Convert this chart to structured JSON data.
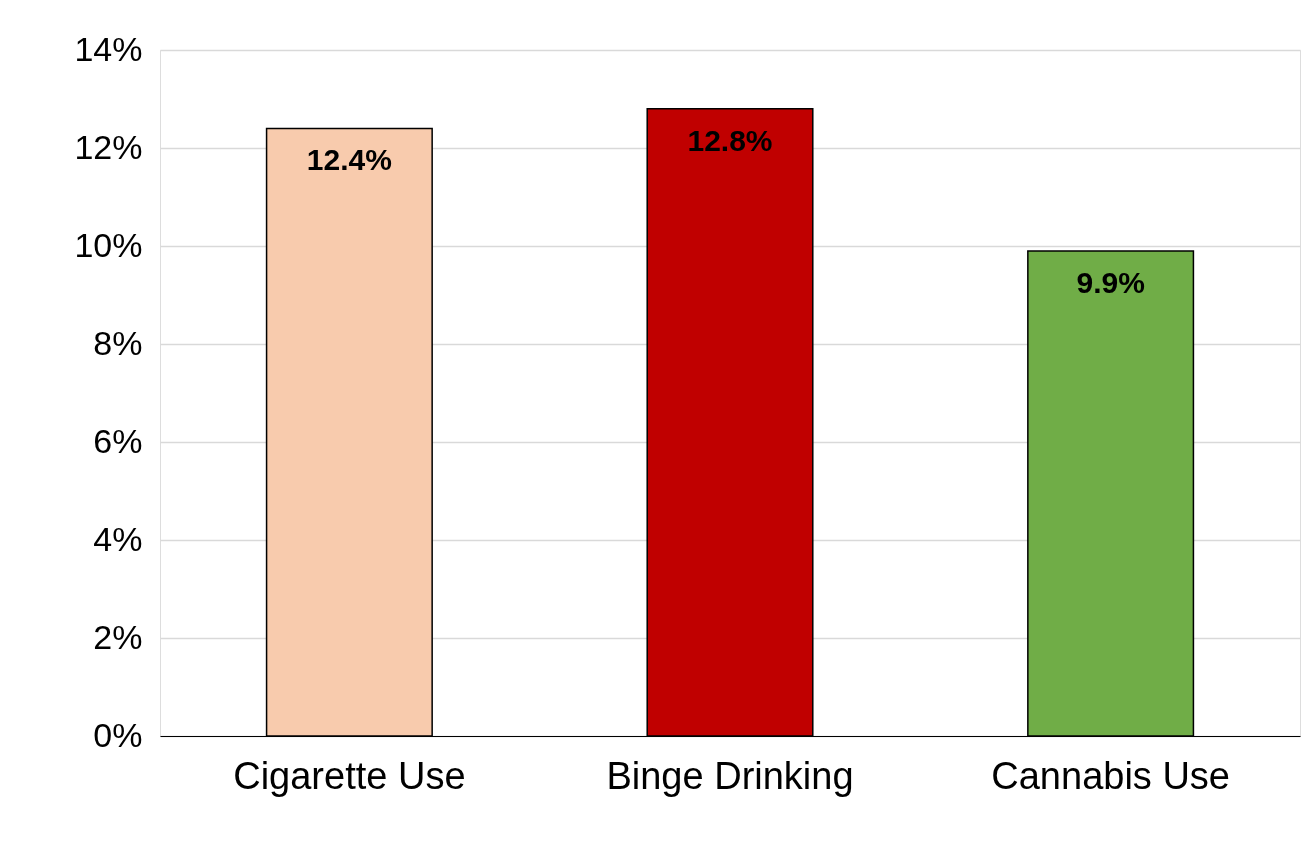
{
  "chart_data": {
    "type": "bar",
    "categories": [
      "Cigarette Use",
      "Binge Drinking",
      "Cannabis Use"
    ],
    "values": [
      12.4,
      12.8,
      9.9
    ],
    "colors": [
      "#f8cbad",
      "#c00000",
      "#70ad47"
    ],
    "value_labels": [
      "12.4%",
      "12.8%",
      "9.9%"
    ],
    "ylim": [
      0,
      14
    ],
    "yticks": [
      {
        "value": 0,
        "label": "0%"
      },
      {
        "value": 2,
        "label": "2%"
      },
      {
        "value": 4,
        "label": "4%"
      },
      {
        "value": 6,
        "label": "6%"
      },
      {
        "value": 8,
        "label": "8%"
      },
      {
        "value": 10,
        "label": "10%"
      },
      {
        "value": 12,
        "label": "12%"
      },
      {
        "value": 14,
        "label": "14%"
      }
    ],
    "grid": "y"
  }
}
